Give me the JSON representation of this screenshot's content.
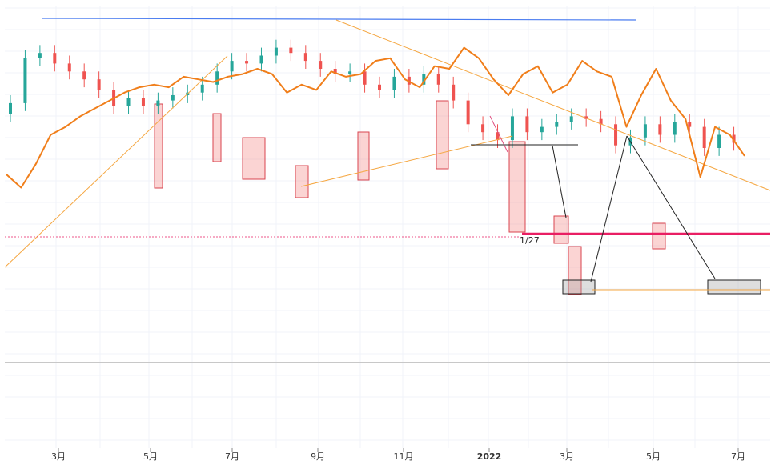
{
  "chart_data": {
    "type": "line",
    "x_ticks": [
      "3月",
      "5月",
      "7月",
      "9月",
      "11月",
      "2022",
      "3月",
      "5月",
      "7月"
    ],
    "bold_ticks": [
      "2022"
    ],
    "y_scale": "linear",
    "y_range": [
      0,
      100
    ],
    "grid": true,
    "series": [
      {
        "type": "line",
        "color": "#f07e1a",
        "x": [
          0,
          2,
          4,
          6,
          8,
          10,
          12,
          14,
          16,
          18,
          20,
          22,
          24,
          26,
          28,
          30,
          32,
          34,
          36,
          38,
          40,
          42,
          44,
          46,
          48,
          50,
          52,
          54,
          56,
          58,
          60,
          62,
          64,
          66,
          68,
          70,
          72,
          74,
          76,
          78,
          80,
          82,
          84,
          86,
          88,
          90,
          92,
          94,
          96,
          98,
          100
        ],
        "values": [
          40,
          35,
          44,
          55,
          58,
          62,
          65,
          68,
          71,
          73,
          74,
          73,
          77,
          76,
          75,
          77,
          78,
          80,
          78,
          71,
          74,
          72,
          79,
          77,
          78,
          83,
          84,
          76,
          73,
          81,
          80,
          88,
          84,
          76,
          70,
          78,
          81,
          71,
          74,
          83,
          79,
          77,
          58,
          70,
          80,
          68,
          61,
          39,
          58,
          55,
          47
        ]
      },
      {
        "type": "candlestick",
        "up_color": "#26a69a",
        "down_color": "#ef5350",
        "x": [
          0,
          2,
          4,
          6,
          8,
          10,
          12,
          14,
          16,
          18,
          20,
          22,
          24,
          26,
          28,
          30,
          32,
          34,
          36,
          38,
          40,
          42,
          44,
          46,
          48,
          50,
          52,
          54,
          56,
          58,
          60,
          62,
          64,
          66,
          68,
          70,
          72,
          74,
          76,
          78,
          80,
          82,
          84,
          86,
          88,
          90,
          92,
          94,
          96,
          98
        ],
        "open": [
          63,
          67,
          84,
          86,
          82,
          79,
          76,
          72,
          66,
          69,
          66,
          68,
          70,
          71,
          74,
          79,
          83,
          82,
          85,
          88,
          86,
          83,
          80,
          78,
          79,
          74,
          72,
          77,
          74,
          78,
          74,
          68,
          59,
          56,
          53,
          62,
          56,
          58,
          60,
          62,
          61,
          59,
          51,
          54,
          59,
          55,
          60,
          58,
          50,
          55
        ],
        "close": [
          67,
          84,
          86,
          82,
          79,
          76,
          72,
          66,
          69,
          66,
          68,
          70,
          71,
          74,
          79,
          83,
          82,
          85,
          88,
          86,
          83,
          80,
          78,
          79,
          74,
          72,
          77,
          74,
          78,
          74,
          68,
          59,
          56,
          53,
          62,
          56,
          58,
          60,
          62,
          61,
          59,
          51,
          54,
          59,
          55,
          60,
          58,
          50,
          55,
          52
        ]
      }
    ],
    "annotations": {
      "label_127": "1/27"
    }
  }
}
